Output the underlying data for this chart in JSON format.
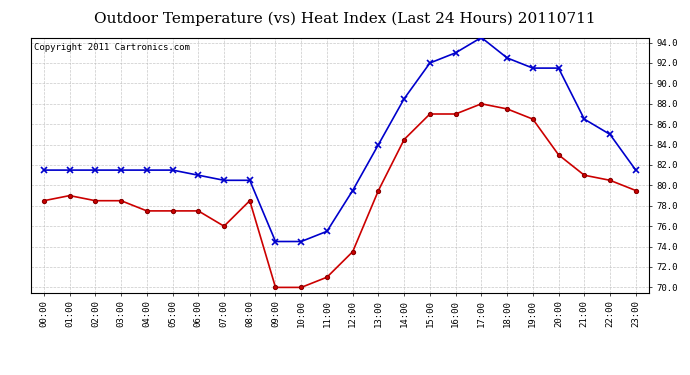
{
  "title": "Outdoor Temperature (vs) Heat Index (Last 24 Hours) 20110711",
  "copyright": "Copyright 2011 Cartronics.com",
  "hours": [
    "00:00",
    "01:00",
    "02:00",
    "03:00",
    "04:00",
    "05:00",
    "06:00",
    "07:00",
    "08:00",
    "09:00",
    "10:00",
    "11:00",
    "12:00",
    "13:00",
    "14:00",
    "15:00",
    "16:00",
    "17:00",
    "18:00",
    "19:00",
    "20:00",
    "21:00",
    "22:00",
    "23:00"
  ],
  "heat_index": [
    81.5,
    81.5,
    81.5,
    81.5,
    81.5,
    81.5,
    81.0,
    80.5,
    80.5,
    74.5,
    74.5,
    75.5,
    79.5,
    84.0,
    88.5,
    92.0,
    93.0,
    94.5,
    92.5,
    91.5,
    91.5,
    86.5,
    85.0,
    81.5
  ],
  "temperature": [
    78.5,
    79.0,
    78.5,
    78.5,
    77.5,
    77.5,
    77.5,
    76.0,
    78.5,
    70.0,
    70.0,
    71.0,
    73.5,
    79.5,
    84.5,
    87.0,
    87.0,
    88.0,
    87.5,
    86.5,
    83.0,
    81.0,
    80.5,
    79.5
  ],
  "heat_index_color": "#0000cc",
  "temperature_color": "#cc0000",
  "ylim_min": 69.5,
  "ylim_max": 94.5,
  "yticks": [
    70.0,
    72.0,
    74.0,
    76.0,
    78.0,
    80.0,
    82.0,
    84.0,
    86.0,
    88.0,
    90.0,
    92.0,
    94.0
  ],
  "background_color": "#ffffff",
  "grid_color": "#bbbbbb",
  "title_fontsize": 11,
  "copyright_fontsize": 6.5
}
